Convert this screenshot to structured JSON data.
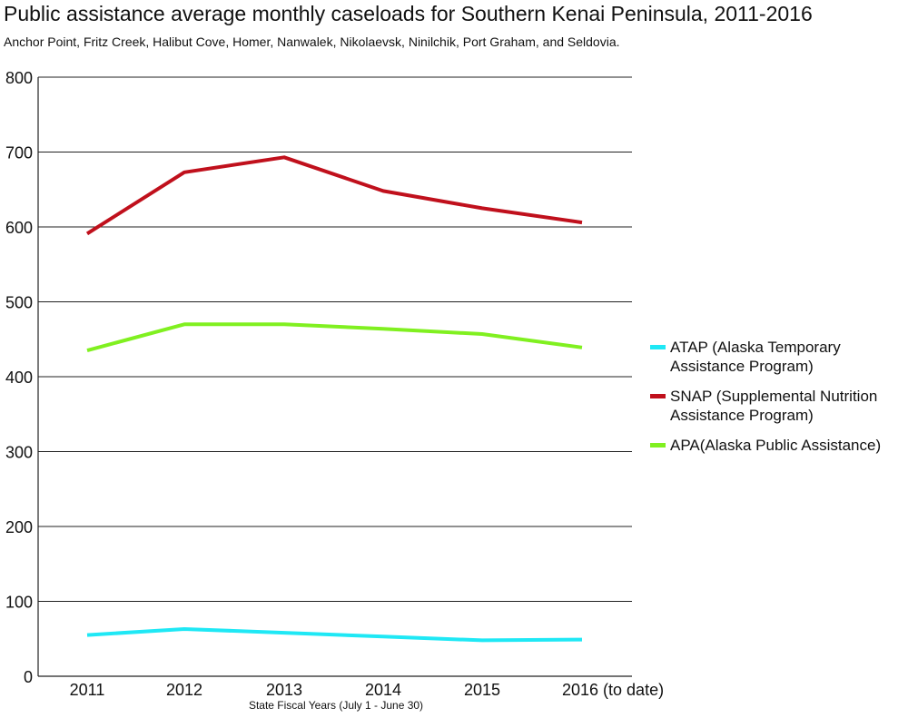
{
  "chart_data": {
    "type": "line",
    "title": "Public assistance average monthly caseloads for Southern Kenai Peninsula, 2011-2016",
    "subtitle": "Anchor Point, Fritz Creek, Halibut Cove, Homer, Nanwalek, Nikolaevsk, Ninilchik, Port Graham, and Seldovia.",
    "categories": [
      "2011",
      "2012",
      "2013",
      "2014",
      "2015",
      "2016 (to date)"
    ],
    "xlabel": "State Fiscal Years (July 1 - June 30)",
    "ylabel": "",
    "ylim": [
      0,
      800
    ],
    "yticks": [
      "0",
      "100",
      "200",
      "300",
      "400",
      "500",
      "600",
      "700",
      "800"
    ],
    "grid": true,
    "legend_position": "right",
    "series": [
      {
        "name": "ATAP (Alaska Temporary Assistance Program)",
        "legend_lines": [
          "ATAP (Alaska Temporary",
          "Assistance Program)"
        ],
        "color": "#1fe8f5",
        "values": [
          55,
          63,
          58,
          53,
          48,
          49
        ]
      },
      {
        "name": "SNAP (Supplemental Nutrition Assistance Program)",
        "legend_lines": [
          "SNAP (Supplemental Nutrition",
          "Assistance Program)"
        ],
        "color": "#c0101c",
        "values": [
          591,
          673,
          693,
          648,
          625,
          606
        ]
      },
      {
        "name": "APA(Alaska Public Assistance)",
        "legend_lines": [
          "APA(Alaska Public Assistance)"
        ],
        "color": "#80f020",
        "values": [
          435,
          470,
          470,
          464,
          457,
          439
        ]
      }
    ]
  }
}
